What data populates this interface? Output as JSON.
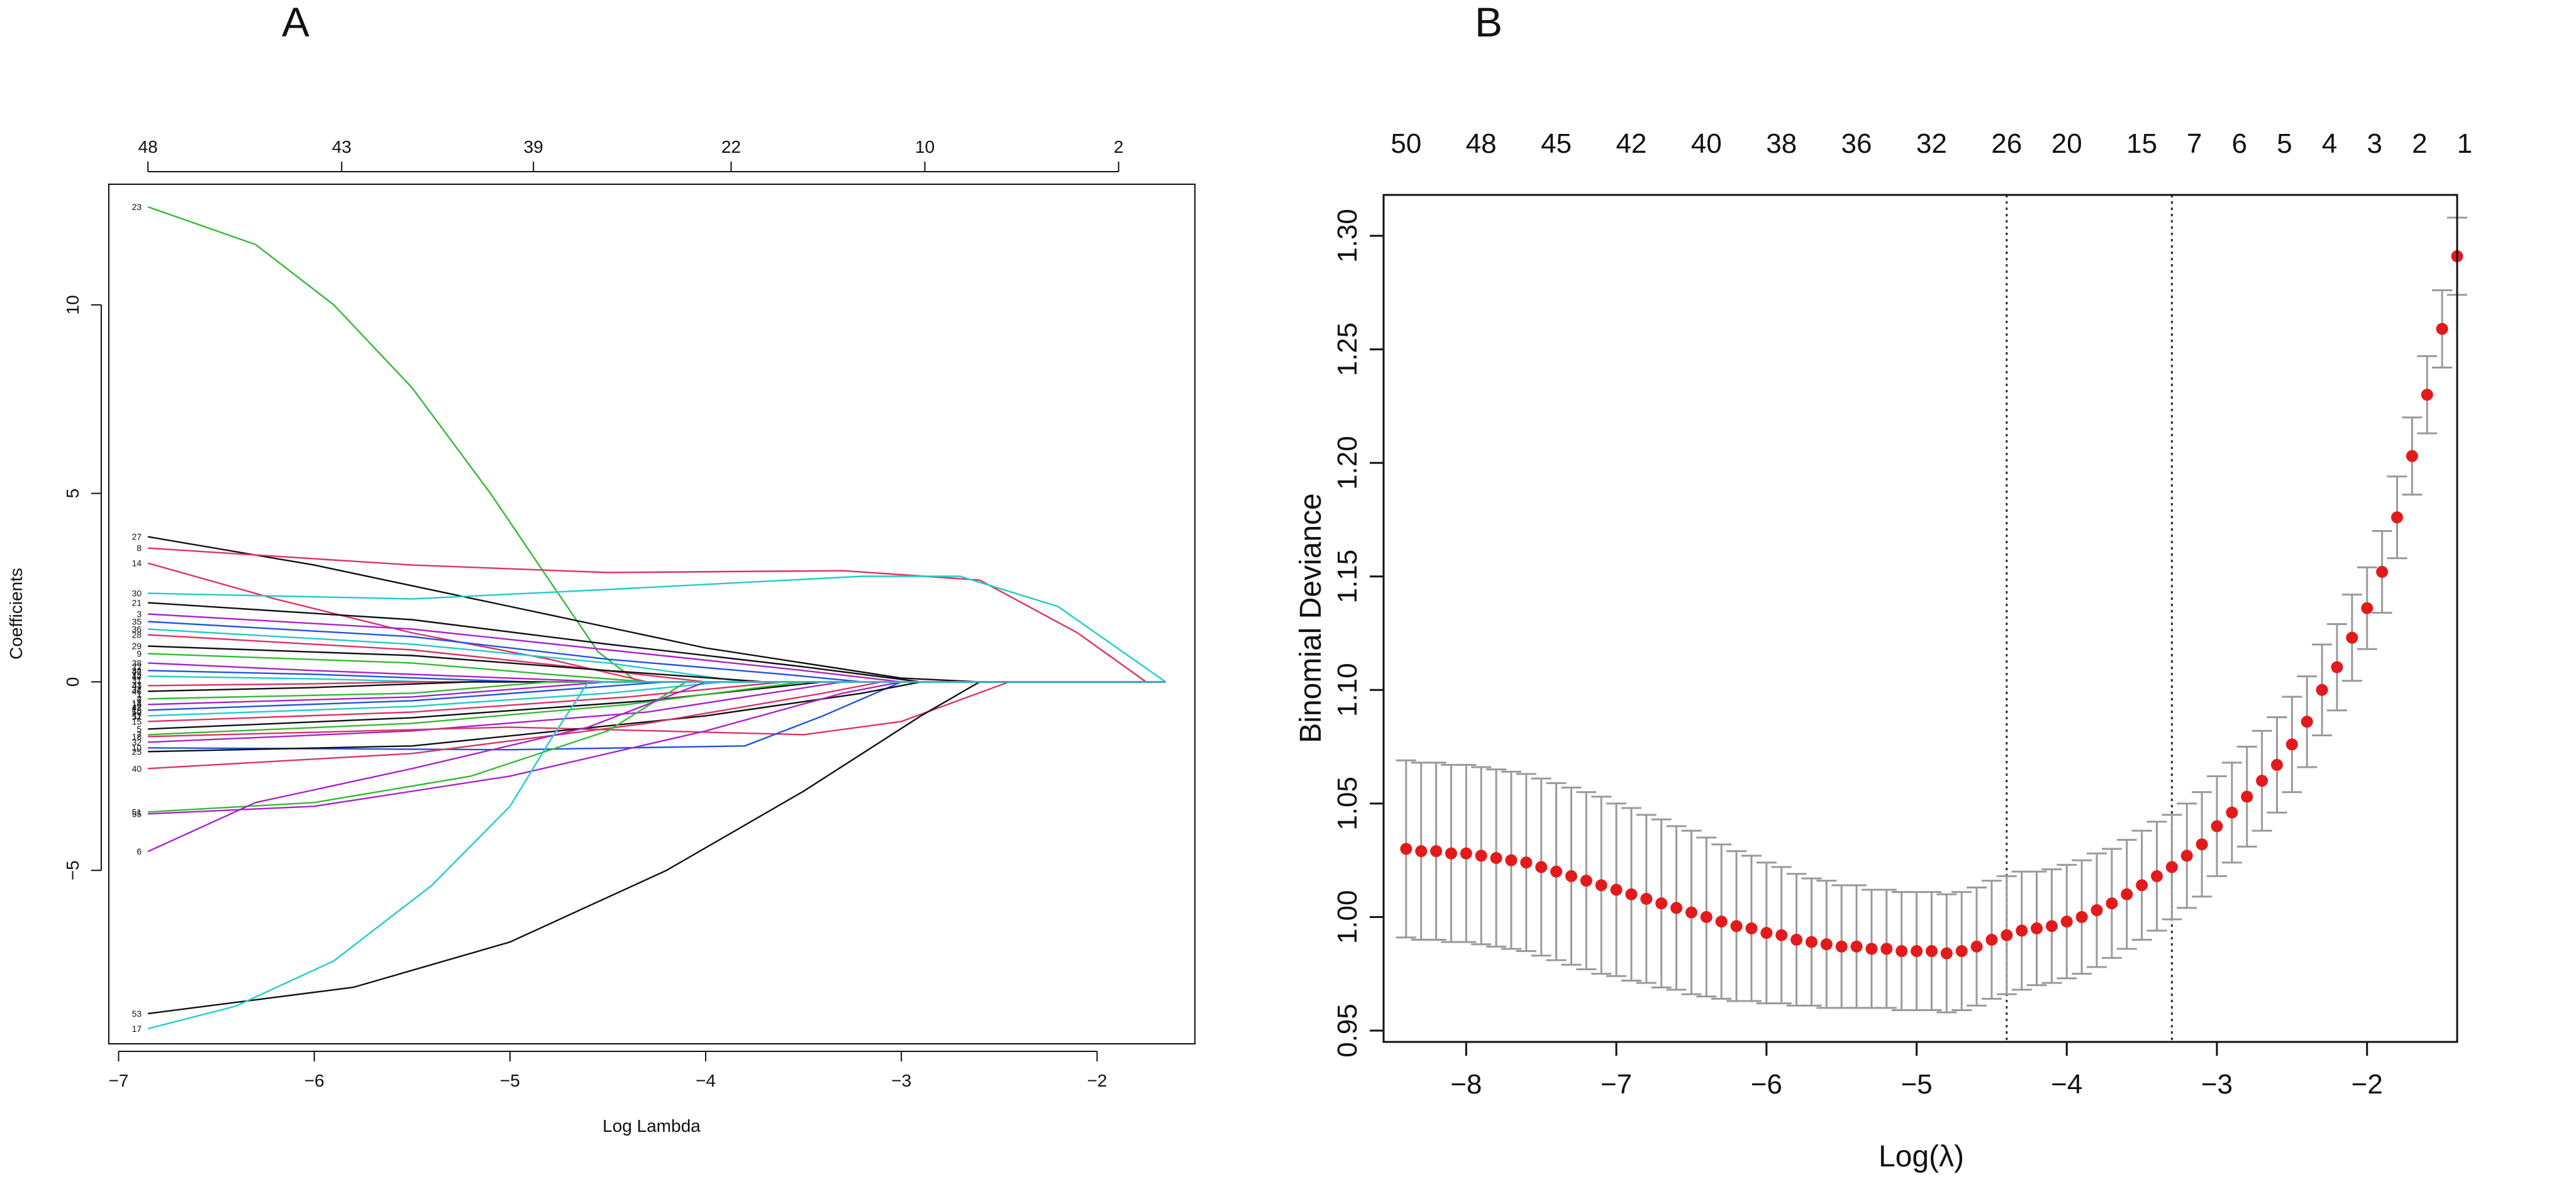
{
  "chart_data": [
    {
      "panel": "A",
      "type": "line",
      "title": "",
      "xlabel": "Log Lambda",
      "ylabel": "Coefficients",
      "xlim": [
        -7.05,
        -1.5
      ],
      "ylim": [
        -9.6,
        13.2
      ],
      "x_ticks": [
        -7,
        -6,
        -5,
        -4,
        -3,
        -2
      ],
      "y_ticks": [
        -5,
        0,
        5,
        10
      ],
      "top_axis": {
        "positions": [
          -6.85,
          -5.86,
          -4.88,
          -3.87,
          -2.88,
          -1.89
        ],
        "labels": [
          "48",
          "43",
          "39",
          "22",
          "10",
          "2"
        ]
      },
      "x_start": -6.85,
      "series": [
        {
          "label": "23",
          "color": "#33bb33",
          "points": [
            [
              -6.85,
              12.6
            ],
            [
              -6.3,
              11.6
            ],
            [
              -5.9,
              10.0
            ],
            [
              -5.5,
              7.8
            ],
            [
              -5.1,
              5.0
            ],
            [
              -4.8,
              2.7
            ],
            [
              -4.55,
              0.8
            ],
            [
              -4.35,
              0
            ]
          ]
        },
        {
          "label": "27",
          "color": "#111111",
          "points": [
            [
              -6.85,
              3.85
            ],
            [
              -6.0,
              3.1
            ],
            [
              -5.0,
              2.0
            ],
            [
              -4.0,
              0.9
            ],
            [
              -3.0,
              0.1
            ],
            [
              -2.6,
              0
            ]
          ]
        },
        {
          "label": "8",
          "color": "#dd3366",
          "points": [
            [
              -6.85,
              3.55
            ],
            [
              -5.5,
              3.1
            ],
            [
              -4.5,
              2.9
            ],
            [
              -3.3,
              2.95
            ],
            [
              -2.6,
              2.7
            ],
            [
              -2.1,
              1.3
            ],
            [
              -1.75,
              0
            ]
          ]
        },
        {
          "label": "14",
          "color": "#dd3366",
          "points": [
            [
              -6.85,
              3.15
            ],
            [
              -6.2,
              2.2
            ],
            [
              -5.5,
              1.3
            ],
            [
              -4.8,
              0.6
            ],
            [
              -4.3,
              0
            ]
          ]
        },
        {
          "label": "30",
          "color": "#22cccc",
          "points": [
            [
              -6.85,
              2.35
            ],
            [
              -5.5,
              2.2
            ],
            [
              -4.5,
              2.45
            ],
            [
              -3.2,
              2.8
            ],
            [
              -2.7,
              2.8
            ],
            [
              -2.2,
              2.0
            ],
            [
              -1.65,
              0
            ]
          ]
        },
        {
          "label": "21",
          "color": "#111111",
          "points": [
            [
              -6.85,
              2.1
            ],
            [
              -5.5,
              1.65
            ],
            [
              -4.5,
              1.0
            ],
            [
              -3.5,
              0.4
            ],
            [
              -2.9,
              0
            ]
          ]
        },
        {
          "label": "3",
          "color": "#aa22cc",
          "points": [
            [
              -6.85,
              1.8
            ],
            [
              -5.5,
              1.4
            ],
            [
              -4.5,
              0.85
            ],
            [
              -3.5,
              0.3
            ],
            [
              -3.0,
              0
            ]
          ]
        },
        {
          "label": "35",
          "color": "#2255dd",
          "points": [
            [
              -6.85,
              1.6
            ],
            [
              -5.5,
              1.2
            ],
            [
              -4.5,
              0.6
            ],
            [
              -3.6,
              0.2
            ],
            [
              -3.2,
              0
            ]
          ]
        },
        {
          "label": "36",
          "color": "#22cccc",
          "points": [
            [
              -6.85,
              1.4
            ],
            [
              -5.5,
              1.0
            ],
            [
              -4.5,
              0.5
            ],
            [
              -3.8,
              0
            ]
          ]
        },
        {
          "label": "28",
          "color": "#dd3366",
          "points": [
            [
              -6.85,
              1.25
            ],
            [
              -5.5,
              0.85
            ],
            [
              -4.6,
              0.35
            ],
            [
              -4.0,
              0
            ]
          ]
        },
        {
          "label": "29",
          "color": "#111111",
          "points": [
            [
              -6.85,
              0.95
            ],
            [
              -5.5,
              0.7
            ],
            [
              -4.5,
              0.3
            ],
            [
              -3.7,
              0
            ]
          ]
        },
        {
          "label": "9",
          "color": "#33bb33",
          "points": [
            [
              -6.85,
              0.75
            ],
            [
              -5.5,
              0.5
            ],
            [
              -4.8,
              0.2
            ],
            [
              -4.3,
              0
            ]
          ]
        },
        {
          "label": "38",
          "color": "#aa22cc",
          "points": [
            [
              -6.85,
              0.5
            ],
            [
              -6.0,
              0.3
            ],
            [
              -5.0,
              0.1
            ],
            [
              -4.5,
              0
            ]
          ]
        },
        {
          "label": "34",
          "color": "#2255dd",
          "points": [
            [
              -6.85,
              0.3
            ],
            [
              -6.0,
              0.2
            ],
            [
              -5.2,
              0.05
            ],
            [
              -4.9,
              0
            ]
          ]
        },
        {
          "label": "12",
          "color": "#22cccc",
          "points": [
            [
              -6.85,
              0.15
            ],
            [
              -6.0,
              0.08
            ],
            [
              -5.4,
              0
            ]
          ]
        },
        {
          "label": "41",
          "color": "#dd3366",
          "points": [
            [
              -6.85,
              -0.1
            ],
            [
              -6.0,
              -0.05
            ],
            [
              -5.5,
              0
            ]
          ]
        },
        {
          "label": "46",
          "color": "#111111",
          "points": [
            [
              -6.85,
              -0.25
            ],
            [
              -6.0,
              -0.15
            ],
            [
              -5.2,
              0
            ]
          ]
        },
        {
          "label": "2",
          "color": "#33bb33",
          "points": [
            [
              -6.85,
              -0.45
            ],
            [
              -5.5,
              -0.3
            ],
            [
              -4.8,
              0
            ]
          ]
        },
        {
          "label": "16",
          "color": "#aa22cc",
          "points": [
            [
              -6.85,
              -0.6
            ],
            [
              -5.5,
              -0.4
            ],
            [
              -4.5,
              0
            ]
          ]
        },
        {
          "label": "19",
          "color": "#2255dd",
          "points": [
            [
              -6.85,
              -0.75
            ],
            [
              -5.5,
              -0.5
            ],
            [
              -4.2,
              0
            ]
          ]
        },
        {
          "label": "11",
          "color": "#22cccc",
          "points": [
            [
              -6.85,
              -0.9
            ],
            [
              -5.5,
              -0.65
            ],
            [
              -4.5,
              -0.3
            ],
            [
              -3.9,
              0
            ]
          ]
        },
        {
          "label": "15",
          "color": "#dd3366",
          "points": [
            [
              -6.85,
              -1.05
            ],
            [
              -5.5,
              -0.8
            ],
            [
              -4.4,
              -0.4
            ],
            [
              -3.6,
              0
            ]
          ]
        },
        {
          "label": "5",
          "color": "#111111",
          "points": [
            [
              -6.85,
              -1.25
            ],
            [
              -5.5,
              -0.95
            ],
            [
              -4.3,
              -0.5
            ],
            [
              -3.4,
              0
            ]
          ]
        },
        {
          "label": "7",
          "color": "#33bb33",
          "points": [
            [
              -6.85,
              -1.4
            ],
            [
              -5.5,
              -1.1
            ],
            [
              -4.4,
              -0.6
            ],
            [
              -3.5,
              0
            ]
          ]
        },
        {
          "label": "32",
          "color": "#aa22cc",
          "points": [
            [
              -6.85,
              -1.6
            ],
            [
              -5.5,
              -1.3
            ],
            [
              -4.3,
              -0.8
            ],
            [
              -3.3,
              0
            ]
          ]
        },
        {
          "label": "18",
          "color": "#dd3366",
          "points": [
            [
              -6.85,
              -1.45
            ],
            [
              -5.0,
              -1.2
            ],
            [
              -3.5,
              -1.4
            ],
            [
              -3.0,
              -1.05
            ],
            [
              -2.45,
              0
            ]
          ]
        },
        {
          "label": "10",
          "color": "#2255dd",
          "points": [
            [
              -6.85,
              -1.75
            ],
            [
              -5.0,
              -1.8
            ],
            [
              -3.8,
              -1.7
            ],
            [
              -3.4,
              -0.9
            ],
            [
              -3.0,
              0
            ]
          ]
        },
        {
          "label": "25",
          "color": "#111111",
          "points": [
            [
              -6.85,
              -1.85
            ],
            [
              -5.5,
              -1.7
            ],
            [
              -4.0,
              -0.9
            ],
            [
              -3.2,
              -0.3
            ],
            [
              -2.9,
              0
            ]
          ]
        },
        {
          "label": "40",
          "color": "#dd3366",
          "points": [
            [
              -6.85,
              -2.3
            ],
            [
              -5.5,
              -1.9
            ],
            [
              -4.3,
              -1.1
            ],
            [
              -3.4,
              -0.3
            ],
            [
              -3.1,
              0
            ]
          ]
        },
        {
          "label": "51",
          "color": "#33bb33",
          "points": [
            [
              -6.85,
              -3.45
            ],
            [
              -6.0,
              -3.2
            ],
            [
              -5.2,
              -2.5
            ],
            [
              -4.5,
              -1.3
            ],
            [
              -4.1,
              0
            ]
          ]
        },
        {
          "label": "55",
          "color": "#aa22cc",
          "points": [
            [
              -6.85,
              -3.5
            ],
            [
              -6.0,
              -3.3
            ],
            [
              -5.0,
              -2.5
            ],
            [
              -4.0,
              -1.3
            ],
            [
              -3.3,
              -0.3
            ],
            [
              -3.0,
              0
            ]
          ]
        },
        {
          "label": "6",
          "color": "#aa22cc",
          "points": [
            [
              -6.85,
              -4.5
            ],
            [
              -6.3,
              -3.2
            ],
            [
              -5.5,
              -2.3
            ],
            [
              -4.6,
              -1.2
            ],
            [
              -4.0,
              0
            ]
          ]
        },
        {
          "label": "53",
          "color": "#111111",
          "points": [
            [
              -6.85,
              -8.8
            ],
            [
              -5.8,
              -8.1
            ],
            [
              -5.0,
              -6.9
            ],
            [
              -4.2,
              -5.0
            ],
            [
              -3.5,
              -2.9
            ],
            [
              -2.9,
              -0.9
            ],
            [
              -2.6,
              0
            ]
          ]
        },
        {
          "label": "17",
          "color": "#22cccc",
          "points": [
            [
              -6.85,
              -9.2
            ],
            [
              -6.4,
              -8.6
            ],
            [
              -5.9,
              -7.4
            ],
            [
              -5.4,
              -5.4
            ],
            [
              -5.0,
              -3.3
            ],
            [
              -4.8,
              -1.6
            ],
            [
              -4.6,
              0
            ]
          ]
        }
      ],
      "end_labels_extra": [
        "22",
        "42",
        "44",
        "31",
        "33",
        "37",
        "1",
        "4",
        "13",
        "47",
        "50",
        "52"
      ]
    },
    {
      "panel": "B",
      "type": "scatter",
      "title": "",
      "xlabel": "Log(λ)",
      "ylabel": "Binomial Deviance",
      "xlim": [
        -8.55,
        -1.4
      ],
      "ylim": [
        0.945,
        1.318
      ],
      "x_ticks": [
        -8,
        -7,
        -6,
        -5,
        -4,
        -3,
        -2
      ],
      "y_ticks": [
        0.95,
        1.0,
        1.05,
        1.1,
        1.15,
        1.2,
        1.25,
        1.3
      ],
      "y_tick_labels": [
        "0.95",
        "1.00",
        "1.05",
        "1.10",
        "1.15",
        "1.20",
        "1.25",
        "1.30"
      ],
      "top_axis": {
        "positions": [
          -8.4,
          -7.9,
          -7.4,
          -6.9,
          -6.4,
          -5.9,
          -5.4,
          -4.9,
          -4.4,
          -4.0,
          -3.5,
          -3.15,
          -2.85,
          -2.55,
          -2.25,
          -1.95,
          -1.65,
          -1.35
        ],
        "labels": [
          "50",
          "48",
          "45",
          "42",
          "40",
          "38",
          "36",
          "32",
          "26",
          "20",
          "15",
          "7",
          "6",
          "5",
          "4",
          "3",
          "2",
          "1"
        ]
      },
      "vlines": [
        -4.4,
        -3.3
      ],
      "x_first": -8.4,
      "x_step": 0.1,
      "mean": [
        1.03,
        1.029,
        1.029,
        1.028,
        1.028,
        1.027,
        1.026,
        1.025,
        1.024,
        1.022,
        1.02,
        1.018,
        1.016,
        1.014,
        1.012,
        1.01,
        1.008,
        1.006,
        1.004,
        1.002,
        1.0,
        0.998,
        0.996,
        0.995,
        0.993,
        0.992,
        0.99,
        0.989,
        0.988,
        0.987,
        0.987,
        0.986,
        0.986,
        0.985,
        0.985,
        0.985,
        0.984,
        0.985,
        0.987,
        0.99,
        0.992,
        0.994,
        0.995,
        0.996,
        0.998,
        1.0,
        1.003,
        1.006,
        1.01,
        1.014,
        1.018,
        1.022,
        1.027,
        1.032,
        1.04,
        1.046,
        1.053,
        1.06,
        1.067,
        1.076,
        1.086,
        1.1,
        1.11,
        1.123,
        1.136,
        1.152,
        1.176,
        1.203,
        1.23,
        1.259,
        1.291
      ],
      "error_halfwidth": [
        0.039,
        0.039,
        0.039,
        0.039,
        0.039,
        0.039,
        0.039,
        0.039,
        0.039,
        0.039,
        0.039,
        0.039,
        0.039,
        0.039,
        0.038,
        0.038,
        0.037,
        0.037,
        0.036,
        0.036,
        0.035,
        0.034,
        0.033,
        0.032,
        0.031,
        0.03,
        0.029,
        0.028,
        0.028,
        0.027,
        0.027,
        0.026,
        0.026,
        0.026,
        0.026,
        0.026,
        0.026,
        0.026,
        0.026,
        0.026,
        0.026,
        0.026,
        0.025,
        0.025,
        0.025,
        0.025,
        0.025,
        0.024,
        0.024,
        0.024,
        0.024,
        0.023,
        0.023,
        0.023,
        0.022,
        0.022,
        0.022,
        0.022,
        0.021,
        0.021,
        0.02,
        0.02,
        0.019,
        0.019,
        0.018,
        0.018,
        0.018,
        0.017,
        0.017,
        0.017,
        0.017
      ]
    }
  ],
  "panels": {
    "A": {
      "letter": "A",
      "colors": {
        "axis": "#111111"
      }
    },
    "B": {
      "letter": "B",
      "colors": {
        "point": "#e31a1c",
        "errorbar": "#9a9a9a",
        "vline": "#333333",
        "axis": "#111111"
      }
    }
  }
}
